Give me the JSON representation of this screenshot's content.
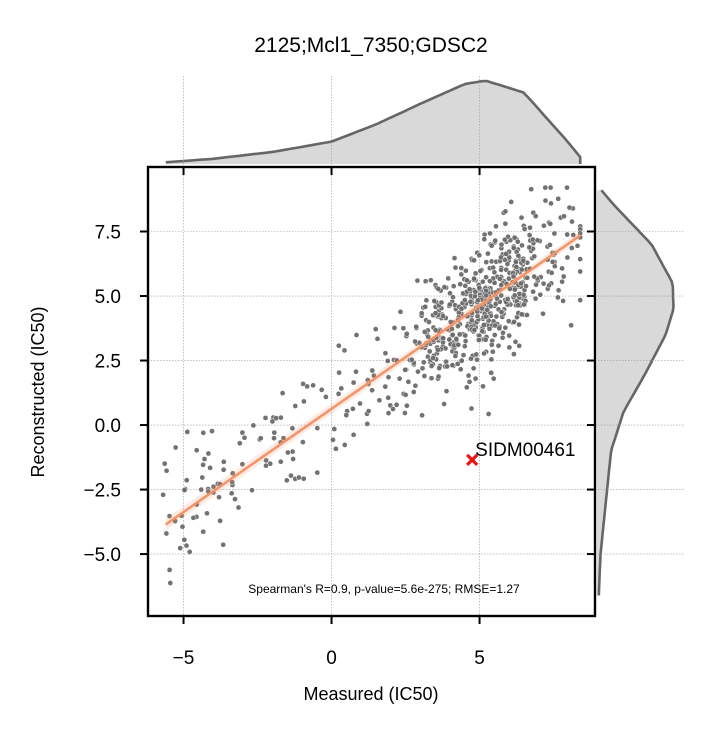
{
  "chart_data": {
    "type": "scatter",
    "title": "2125;Mcl1_7350;GDSC2",
    "xlabel": "Measured (IC50)",
    "ylabel": "Reconstructed (IC50)",
    "xlim": [
      -6.2,
      8.9
    ],
    "ylim": [
      -7.4,
      10.0
    ],
    "xticks": [
      -5,
      0,
      5
    ],
    "yticks": [
      -5.0,
      -2.5,
      0.0,
      2.5,
      5.0,
      7.5
    ],
    "xtick_labels": [
      "−5",
      "0",
      "5"
    ],
    "ytick_labels": [
      "−5.0",
      "−2.5",
      "0.0",
      "2.5",
      "5.0",
      "7.5"
    ],
    "grid": true,
    "annotation": "Spearman's R=0.9, p-value=5.6e-275; RMSE=1.27",
    "regression_line": {
      "x": [
        -5.6,
        8.4
      ],
      "y": [
        -3.85,
        7.35
      ],
      "color": "#f4946b"
    },
    "highlight_point": {
      "label": "SIDM00461",
      "x": 4.75,
      "y": -1.35,
      "color": "#ee1111"
    },
    "point_color": "#6a6a6a",
    "n_points": 700,
    "scatter_model": {
      "slope": 0.8,
      "intercept": 0.63,
      "residual_sd": 1.2,
      "x_min": -5.7,
      "x_max": 8.4
    },
    "marginal_x_density": {
      "x": [
        -5.6,
        -4,
        -2,
        0,
        1.5,
        3,
        4.5,
        5.2,
        6.5,
        8,
        8.4
      ],
      "density": [
        0.02,
        0.06,
        0.14,
        0.26,
        0.46,
        0.7,
        0.93,
        0.97,
        0.83,
        0.25,
        0.08
      ]
    },
    "marginal_y_density": {
      "y": [
        -6.6,
        -5,
        -3,
        -1,
        0.5,
        2,
        3.5,
        4.5,
        5.5,
        7,
        8.5,
        9.1
      ],
      "density": [
        0.02,
        0.04,
        0.1,
        0.16,
        0.3,
        0.55,
        0.78,
        0.87,
        0.86,
        0.62,
        0.2,
        0.05
      ]
    },
    "marginal_fill": "#d9d9d9",
    "marginal_stroke": "#666666"
  }
}
